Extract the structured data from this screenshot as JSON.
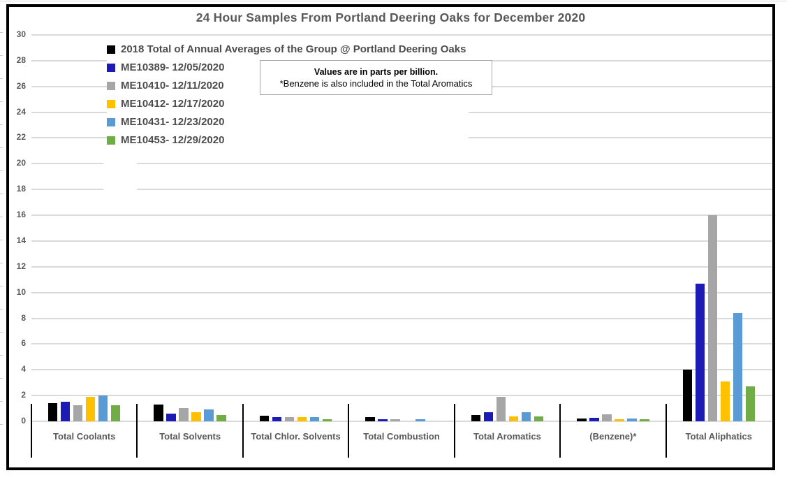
{
  "title": "24 Hour Samples From Portland Deering Oaks for December 2020",
  "note": {
    "line1": "Values are in parts per billion.",
    "line2": "*Benzene is also included in the Total Aromatics"
  },
  "chart_data": {
    "type": "bar",
    "title": "24 Hour Samples From Portland Deering Oaks for December 2020",
    "unit": "parts per billion",
    "legend_position": "top-left",
    "grid": true,
    "categories": [
      "Total Coolants",
      "Total Solvents",
      "Total Chlor. Solvents",
      "Total Combustion",
      "Total Aromatics",
      "(Benzene)*",
      "Total Aliphatics"
    ],
    "series": [
      {
        "name": "2018 Total of Annual Averages of the Group @ Portland Deering Oaks",
        "color": "#000000",
        "values": [
          1.4,
          1.3,
          0.45,
          0.3,
          0.5,
          0.2,
          4.0
        ]
      },
      {
        "name": "ME10389- 12/05/2020",
        "color": "#1c1cb5",
        "values": [
          1.5,
          0.6,
          0.3,
          0.15,
          0.7,
          0.25,
          10.7
        ]
      },
      {
        "name": "ME10410- 12/11/2020",
        "color": "#a6a6a6",
        "values": [
          1.25,
          1.05,
          0.3,
          0.15,
          1.9,
          0.55,
          16.0
        ]
      },
      {
        "name": "ME10412- 12/17/2020",
        "color": "#ffc000",
        "values": [
          1.9,
          0.7,
          0.3,
          0.0,
          0.4,
          0.15,
          3.1
        ]
      },
      {
        "name": "ME10431- 12/23/2020",
        "color": "#5b9bd5",
        "values": [
          2.0,
          0.9,
          0.35,
          0.15,
          0.7,
          0.2,
          8.4
        ]
      },
      {
        "name": "ME10453- 12/29/2020",
        "color": "#70ad47",
        "values": [
          1.25,
          0.5,
          0.15,
          0.0,
          0.4,
          0.15,
          2.7
        ]
      }
    ],
    "y_axis": {
      "min": 0,
      "max": 30,
      "tick_step": 2,
      "ticks": [
        0,
        2,
        4,
        6,
        8,
        10,
        12,
        14,
        16,
        18,
        20,
        22,
        24,
        26,
        28,
        30
      ]
    }
  },
  "colors": {
    "title_text": "#595959",
    "axis_text": "#595959",
    "category_text": "#595959",
    "legend_text": "#4d4d4d",
    "gridline": "#dadada",
    "frame_border": "#000000",
    "separator": "#000000",
    "note_border": "#a6a6a6"
  }
}
